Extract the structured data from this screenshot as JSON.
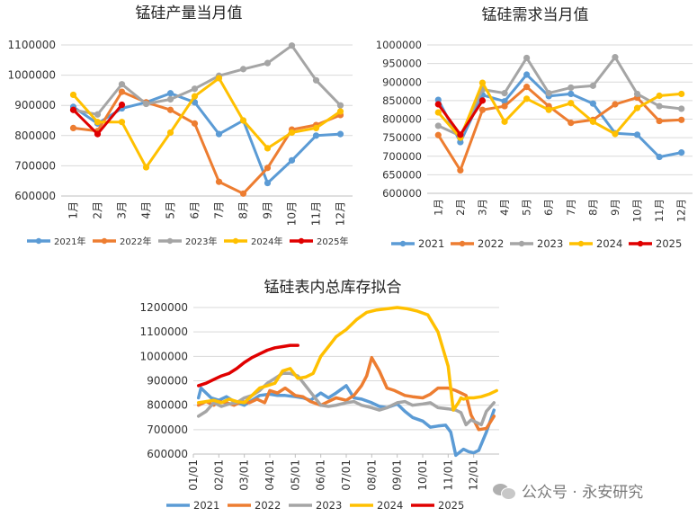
{
  "chart_data": [
    {
      "type": "line",
      "title": "锰硅产量当月值",
      "categories": [
        "1月",
        "2月",
        "3月",
        "4月",
        "5月",
        "6月",
        "7月",
        "8月",
        "9月",
        "10月",
        "11月",
        "12月"
      ],
      "ylim": [
        600000,
        1100000
      ],
      "yticks": [
        "600000",
        "700000",
        "800000",
        "900000",
        "1000000",
        "1100000"
      ],
      "grid": true,
      "legend": "bottom",
      "series": [
        {
          "name": "2021年",
          "color": "#5B9BD5",
          "values": [
            895000,
            840000,
            890000,
            910000,
            940000,
            910000,
            805000,
            850000,
            643000,
            718000,
            800000,
            805000
          ]
        },
        {
          "name": "2022年",
          "color": "#ED7D31",
          "values": [
            825000,
            815000,
            945000,
            910000,
            885000,
            840000,
            647000,
            608000,
            693000,
            820000,
            835000,
            868000
          ]
        },
        {
          "name": "2023年",
          "color": "#A5A5A5",
          "values": [
            885000,
            870000,
            970000,
            905000,
            920000,
            955000,
            998000,
            1020000,
            1040000,
            1098000,
            983000,
            900000
          ]
        },
        {
          "name": "2024年",
          "color": "#FFC000",
          "values": [
            935000,
            845000,
            845000,
            695000,
            810000,
            930000,
            990000,
            850000,
            758000,
            810000,
            825000,
            880000
          ]
        },
        {
          "name": "2025年",
          "color": "#E00000",
          "values": [
            885000,
            805000,
            902000,
            null,
            null,
            null,
            null,
            null,
            null,
            null,
            null,
            null
          ]
        }
      ]
    },
    {
      "type": "line",
      "title": "锰硅需求当月值",
      "categories": [
        "1月",
        "2月",
        "3月",
        "4月",
        "5月",
        "6月",
        "7月",
        "8月",
        "9月",
        "10月",
        "11月",
        "12月"
      ],
      "ylim": [
        600000,
        1000000
      ],
      "yticks": [
        "600000",
        "650000",
        "700000",
        "750000",
        "800000",
        "850000",
        "900000",
        "950000",
        "1000000"
      ],
      "grid": true,
      "legend": "bottom",
      "series": [
        {
          "name": "2021",
          "color": "#5B9BD5",
          "values": [
            852000,
            738000,
            865000,
            848000,
            920000,
            862000,
            868000,
            842000,
            762000,
            758000,
            698000,
            710000
          ]
        },
        {
          "name": "2022",
          "color": "#ED7D31",
          "values": [
            757000,
            662000,
            825000,
            835000,
            887000,
            835000,
            790000,
            798000,
            840000,
            858000,
            795000,
            798000
          ]
        },
        {
          "name": "2023",
          "color": "#A5A5A5",
          "values": [
            782000,
            755000,
            880000,
            870000,
            965000,
            870000,
            885000,
            890000,
            967000,
            868000,
            835000,
            828000
          ]
        },
        {
          "name": "2024",
          "color": "#FFC000",
          "values": [
            818000,
            750000,
            898000,
            793000,
            855000,
            825000,
            843000,
            793000,
            760000,
            830000,
            863000,
            868000
          ]
        },
        {
          "name": "2025",
          "color": "#E00000",
          "values": [
            840000,
            758000,
            850000,
            null,
            null,
            null,
            null,
            null,
            null,
            null,
            null,
            null
          ]
        }
      ]
    },
    {
      "type": "line",
      "title": "锰硅表内总库存拟合",
      "categories": [
        "01/01",
        "02/01",
        "03/01",
        "04/01",
        "05/01",
        "06/01",
        "07/01",
        "08/01",
        "09/01",
        "10/01",
        "11/01",
        "12/01"
      ],
      "xrange": [
        0,
        12
      ],
      "ylim": [
        600000,
        1200000
      ],
      "yticks": [
        "600000",
        "700000",
        "800000",
        "900000",
        "1000000",
        "1100000",
        "1200000"
      ],
      "grid": true,
      "legend": "bottom",
      "series": [
        {
          "name": "2021",
          "color": "#5B9BD5",
          "x": [
            0.2,
            0.3,
            0.5,
            0.7,
            1.0,
            1.3,
            1.6,
            2.0,
            2.3,
            2.6,
            3.0,
            3.3,
            3.6,
            4.0,
            4.3,
            4.6,
            5.0,
            5.3,
            5.6,
            6.0,
            6.3,
            6.6,
            7.0,
            7.3,
            7.6,
            8.0,
            8.3,
            8.6,
            9.0,
            9.3,
            9.6,
            9.9,
            10.1,
            10.3,
            10.6,
            10.8,
            11.0,
            11.2,
            11.5,
            11.8
          ],
          "y": [
            830000,
            870000,
            850000,
            830000,
            820000,
            835000,
            815000,
            800000,
            820000,
            840000,
            845000,
            840000,
            840000,
            835000,
            830000,
            820000,
            850000,
            830000,
            850000,
            880000,
            830000,
            825000,
            810000,
            795000,
            790000,
            805000,
            775000,
            750000,
            735000,
            710000,
            715000,
            718000,
            690000,
            595000,
            620000,
            610000,
            605000,
            615000,
            690000,
            780000
          ]
        },
        {
          "name": "2022",
          "color": "#ED7D31",
          "x": [
            0.2,
            0.5,
            0.8,
            1.0,
            1.3,
            1.6,
            1.9,
            2.2,
            2.5,
            2.8,
            3.0,
            3.3,
            3.6,
            4.0,
            4.3,
            4.6,
            5.0,
            5.3,
            5.6,
            6.0,
            6.3,
            6.6,
            6.8,
            7.0,
            7.3,
            7.6,
            7.9,
            8.3,
            8.6,
            9.0,
            9.3,
            9.6,
            10.0,
            10.3,
            10.5,
            10.7,
            10.9,
            11.2,
            11.5,
            11.8
          ],
          "y": [
            800000,
            815000,
            800000,
            815000,
            810000,
            800000,
            815000,
            810000,
            825000,
            810000,
            860000,
            850000,
            870000,
            840000,
            835000,
            815000,
            800000,
            815000,
            830000,
            820000,
            840000,
            880000,
            920000,
            995000,
            940000,
            870000,
            860000,
            840000,
            835000,
            830000,
            845000,
            870000,
            870000,
            860000,
            850000,
            840000,
            760000,
            700000,
            705000,
            755000
          ]
        },
        {
          "name": "2023",
          "color": "#A5A5A5",
          "x": [
            0.2,
            0.5,
            0.8,
            1.1,
            1.4,
            1.7,
            2.0,
            2.3,
            2.6,
            2.9,
            3.2,
            3.5,
            3.8,
            4.1,
            4.4,
            4.7,
            5.0,
            5.3,
            5.6,
            6.0,
            6.3,
            6.6,
            7.0,
            7.3,
            7.6,
            8.0,
            8.3,
            8.6,
            9.0,
            9.3,
            9.6,
            10.0,
            10.3,
            10.5,
            10.7,
            10.9,
            11.1,
            11.3,
            11.5,
            11.8
          ],
          "y": [
            755000,
            775000,
            810000,
            795000,
            805000,
            810000,
            830000,
            840000,
            860000,
            890000,
            910000,
            930000,
            930000,
            920000,
            880000,
            840000,
            800000,
            795000,
            800000,
            810000,
            815000,
            800000,
            790000,
            780000,
            790000,
            810000,
            815000,
            800000,
            805000,
            810000,
            790000,
            785000,
            780000,
            770000,
            720000,
            740000,
            730000,
            720000,
            775000,
            810000
          ]
        },
        {
          "name": "2024",
          "color": "#FFC000",
          "x": [
            0.2,
            0.5,
            0.8,
            1.1,
            1.4,
            1.7,
            2.0,
            2.3,
            2.6,
            2.9,
            3.2,
            3.5,
            3.8,
            4.1,
            4.4,
            4.7,
            5.0,
            5.3,
            5.6,
            6.0,
            6.4,
            6.8,
            7.2,
            7.6,
            8.0,
            8.4,
            8.8,
            9.2,
            9.6,
            10.0,
            10.2,
            10.4,
            10.5,
            10.6,
            10.8,
            11.0,
            11.3,
            11.6,
            11.9
          ],
          "y": [
            810000,
            815000,
            820000,
            810000,
            825000,
            815000,
            810000,
            840000,
            870000,
            880000,
            890000,
            940000,
            950000,
            910000,
            915000,
            930000,
            1000000,
            1040000,
            1080000,
            1110000,
            1150000,
            1180000,
            1190000,
            1195000,
            1200000,
            1195000,
            1185000,
            1170000,
            1100000,
            960000,
            780000,
            810000,
            830000,
            825000,
            830000,
            830000,
            835000,
            845000,
            860000
          ]
        },
        {
          "name": "2025",
          "color": "#E00000",
          "x": [
            0.2,
            0.5,
            0.8,
            1.1,
            1.4,
            1.7,
            2.0,
            2.3,
            2.6,
            2.9,
            3.2,
            3.5,
            3.8,
            4.1
          ],
          "y": [
            880000,
            890000,
            905000,
            920000,
            930000,
            950000,
            975000,
            995000,
            1010000,
            1025000,
            1035000,
            1040000,
            1045000,
            1045000
          ]
        }
      ]
    }
  ],
  "watermark": "公众号 · 永安研究"
}
